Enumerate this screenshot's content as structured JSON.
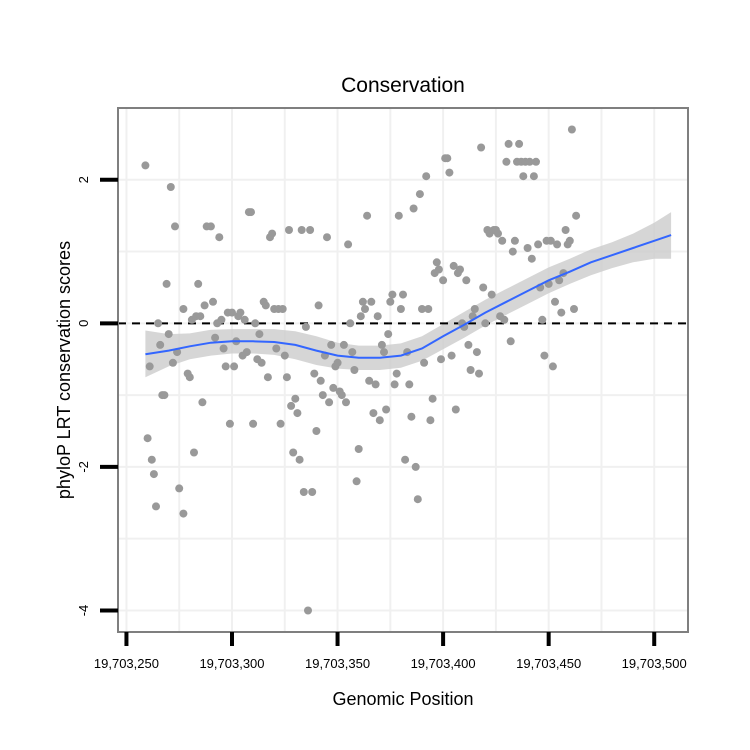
{
  "chart_data": {
    "type": "scatter",
    "title": "Conservation",
    "xlabel": "Genomic Position",
    "ylabel": "phyloP LRT conservation scores",
    "xlim": [
      19703246,
      19703516
    ],
    "ylim": [
      -4.3,
      3.0
    ],
    "x_ticks": [
      19703250,
      19703300,
      19703350,
      19703400,
      19703450,
      19703500
    ],
    "x_tick_labels": [
      "19,703,250",
      "19,703,300",
      "19,703,350",
      "19,703,400",
      "19,703,450",
      "19,703,500"
    ],
    "y_ticks": [
      -4,
      -2,
      0,
      2
    ],
    "y_tick_labels": [
      "-4",
      "-2",
      "0",
      "2"
    ],
    "reference_line": 0,
    "colors": {
      "points": "#999999",
      "smooth_line": "#3366ff",
      "confidence_band": "#cccccc",
      "reference_line": "#000000",
      "grid": "#f0f0f0",
      "panel_border": "#7f7f7f"
    },
    "points": [
      [
        19703259,
        2.2
      ],
      [
        19703260,
        -1.6
      ],
      [
        19703261,
        -0.6
      ],
      [
        19703262,
        -1.9
      ],
      [
        19703263,
        -2.1
      ],
      [
        19703264,
        -2.55
      ],
      [
        19703265,
        0.0
      ],
      [
        19703266,
        -0.3
      ],
      [
        19703267,
        -1.0
      ],
      [
        19703268,
        -1.0
      ],
      [
        19703269,
        0.55
      ],
      [
        19703270,
        -0.15
      ],
      [
        19703271,
        1.9
      ],
      [
        19703272,
        -0.55
      ],
      [
        19703273,
        1.35
      ],
      [
        19703274,
        -0.4
      ],
      [
        19703275,
        -2.3
      ],
      [
        19703277,
        -2.65
      ],
      [
        19703277,
        0.2
      ],
      [
        19703279,
        -0.7
      ],
      [
        19703280,
        -0.75
      ],
      [
        19703281,
        0.05
      ],
      [
        19703282,
        -1.8
      ],
      [
        19703283,
        0.1
      ],
      [
        19703284,
        0.55
      ],
      [
        19703285,
        0.1
      ],
      [
        19703286,
        -1.1
      ],
      [
        19703287,
        0.25
      ],
      [
        19703288,
        1.35
      ],
      [
        19703290,
        1.35
      ],
      [
        19703291,
        0.3
      ],
      [
        19703292,
        -0.2
      ],
      [
        19703293,
        0.0
      ],
      [
        19703294,
        1.2
      ],
      [
        19703295,
        0.05
      ],
      [
        19703296,
        -0.35
      ],
      [
        19703297,
        -0.6
      ],
      [
        19703298,
        0.15
      ],
      [
        19703299,
        -1.4
      ],
      [
        19703300,
        0.15
      ],
      [
        19703301,
        -0.6
      ],
      [
        19703302,
        -0.25
      ],
      [
        19703303,
        0.1
      ],
      [
        19703304,
        0.15
      ],
      [
        19703305,
        -0.45
      ],
      [
        19703306,
        0.05
      ],
      [
        19703307,
        -0.4
      ],
      [
        19703308,
        1.55
      ],
      [
        19703309,
        1.55
      ],
      [
        19703310,
        -1.4
      ],
      [
        19703311,
        0.0
      ],
      [
        19703312,
        -0.5
      ],
      [
        19703313,
        -0.15
      ],
      [
        19703314,
        -0.55
      ],
      [
        19703315,
        0.3
      ],
      [
        19703316,
        0.25
      ],
      [
        19703317,
        -0.75
      ],
      [
        19703318,
        1.2
      ],
      [
        19703319,
        1.25
      ],
      [
        19703320,
        0.2
      ],
      [
        19703321,
        -0.35
      ],
      [
        19703322,
        0.2
      ],
      [
        19703323,
        -1.4
      ],
      [
        19703324,
        0.2
      ],
      [
        19703325,
        -0.45
      ],
      [
        19703326,
        -0.75
      ],
      [
        19703327,
        1.3
      ],
      [
        19703328,
        -1.15
      ],
      [
        19703329,
        -1.8
      ],
      [
        19703330,
        -1.05
      ],
      [
        19703331,
        -1.25
      ],
      [
        19703332,
        -1.9
      ],
      [
        19703333,
        1.3
      ],
      [
        19703334,
        -2.35
      ],
      [
        19703335,
        -0.05
      ],
      [
        19703336,
        -4.0
      ],
      [
        19703337,
        1.3
      ],
      [
        19703338,
        -2.35
      ],
      [
        19703339,
        -0.7
      ],
      [
        19703340,
        -1.5
      ],
      [
        19703341,
        0.25
      ],
      [
        19703342,
        -0.8
      ],
      [
        19703343,
        -1.0
      ],
      [
        19703344,
        -0.45
      ],
      [
        19703345,
        1.2
      ],
      [
        19703346,
        -1.1
      ],
      [
        19703347,
        -0.3
      ],
      [
        19703348,
        -0.9
      ],
      [
        19703349,
        -0.6
      ],
      [
        19703350,
        -0.55
      ],
      [
        19703351,
        -0.95
      ],
      [
        19703352,
        -1.0
      ],
      [
        19703353,
        -0.3
      ],
      [
        19703354,
        -1.1
      ],
      [
        19703355,
        1.1
      ],
      [
        19703356,
        0.0
      ],
      [
        19703357,
        -0.4
      ],
      [
        19703358,
        -0.65
      ],
      [
        19703359,
        -2.2
      ],
      [
        19703360,
        -1.75
      ],
      [
        19703361,
        0.1
      ],
      [
        19703362,
        0.3
      ],
      [
        19703363,
        0.2
      ],
      [
        19703364,
        1.5
      ],
      [
        19703365,
        -0.8
      ],
      [
        19703366,
        0.3
      ],
      [
        19703367,
        -1.25
      ],
      [
        19703368,
        -0.85
      ],
      [
        19703369,
        0.1
      ],
      [
        19703370,
        -1.35
      ],
      [
        19703371,
        -0.3
      ],
      [
        19703372,
        -0.4
      ],
      [
        19703373,
        -1.2
      ],
      [
        19703374,
        -0.15
      ],
      [
        19703375,
        0.3
      ],
      [
        19703376,
        0.4
      ],
      [
        19703377,
        -0.85
      ],
      [
        19703378,
        -0.7
      ],
      [
        19703379,
        1.5
      ],
      [
        19703380,
        0.2
      ],
      [
        19703381,
        0.4
      ],
      [
        19703382,
        -1.9
      ],
      [
        19703383,
        -0.4
      ],
      [
        19703384,
        -0.85
      ],
      [
        19703385,
        -1.3
      ],
      [
        19703386,
        1.6
      ],
      [
        19703387,
        -2.0
      ],
      [
        19703388,
        -2.45
      ],
      [
        19703389,
        1.8
      ],
      [
        19703390,
        0.2
      ],
      [
        19703391,
        -0.55
      ],
      [
        19703392,
        2.05
      ],
      [
        19703393,
        0.2
      ],
      [
        19703394,
        -1.35
      ],
      [
        19703395,
        -1.05
      ],
      [
        19703396,
        0.7
      ],
      [
        19703397,
        0.85
      ],
      [
        19703398,
        0.75
      ],
      [
        19703399,
        -0.5
      ],
      [
        19703400,
        0.6
      ],
      [
        19703401,
        2.3
      ],
      [
        19703402,
        2.3
      ],
      [
        19703403,
        2.1
      ],
      [
        19703404,
        -0.45
      ],
      [
        19703405,
        0.8
      ],
      [
        19703406,
        -1.2
      ],
      [
        19703407,
        0.7
      ],
      [
        19703408,
        0.75
      ],
      [
        19703409,
        0.0
      ],
      [
        19703410,
        -0.05
      ],
      [
        19703411,
        0.6
      ],
      [
        19703412,
        -0.3
      ],
      [
        19703413,
        -0.65
      ],
      [
        19703414,
        0.1
      ],
      [
        19703415,
        0.2
      ],
      [
        19703416,
        -0.4
      ],
      [
        19703417,
        -0.7
      ],
      [
        19703418,
        2.45
      ],
      [
        19703419,
        0.5
      ],
      [
        19703420,
        0.0
      ],
      [
        19703421,
        1.3
      ],
      [
        19703422,
        1.25
      ],
      [
        19703423,
        0.4
      ],
      [
        19703424,
        1.3
      ],
      [
        19703425,
        1.3
      ],
      [
        19703426,
        1.25
      ],
      [
        19703427,
        0.1
      ],
      [
        19703428,
        1.15
      ],
      [
        19703429,
        0.05
      ],
      [
        19703430,
        2.25
      ],
      [
        19703431,
        2.5
      ],
      [
        19703432,
        -0.25
      ],
      [
        19703433,
        1.0
      ],
      [
        19703434,
        1.15
      ],
      [
        19703435,
        2.25
      ],
      [
        19703436,
        2.5
      ],
      [
        19703437,
        2.25
      ],
      [
        19703438,
        2.05
      ],
      [
        19703439,
        2.25
      ],
      [
        19703440,
        1.05
      ],
      [
        19703441,
        2.25
      ],
      [
        19703442,
        0.9
      ],
      [
        19703443,
        2.05
      ],
      [
        19703444,
        2.25
      ],
      [
        19703445,
        1.1
      ],
      [
        19703446,
        0.5
      ],
      [
        19703447,
        0.05
      ],
      [
        19703448,
        -0.45
      ],
      [
        19703449,
        1.15
      ],
      [
        19703450,
        0.55
      ],
      [
        19703451,
        1.15
      ],
      [
        19703452,
        -0.6
      ],
      [
        19703453,
        0.3
      ],
      [
        19703454,
        1.1
      ],
      [
        19703455,
        0.6
      ],
      [
        19703456,
        0.15
      ],
      [
        19703457,
        0.7
      ],
      [
        19703458,
        1.3
      ],
      [
        19703459,
        1.1
      ],
      [
        19703460,
        1.15
      ],
      [
        19703461,
        2.7
      ],
      [
        19703462,
        0.2
      ],
      [
        19703463,
        1.5
      ]
    ],
    "smooth_fit": {
      "x": [
        19703259,
        19703270,
        19703280,
        19703290,
        19703300,
        19703310,
        19703320,
        19703330,
        19703340,
        19703350,
        19703360,
        19703370,
        19703380,
        19703390,
        19703400,
        19703410,
        19703420,
        19703430,
        19703440,
        19703450,
        19703460,
        19703470,
        19703480,
        19703490,
        19703500,
        19703508
      ],
      "y": [
        -0.43,
        -0.38,
        -0.32,
        -0.27,
        -0.25,
        -0.25,
        -0.26,
        -0.3,
        -0.38,
        -0.45,
        -0.48,
        -0.48,
        -0.45,
        -0.35,
        -0.18,
        -0.02,
        0.15,
        0.3,
        0.45,
        0.6,
        0.72,
        0.85,
        0.95,
        1.05,
        1.15,
        1.23
      ],
      "lower": [
        -0.75,
        -0.6,
        -0.5,
        -0.45,
        -0.42,
        -0.42,
        -0.44,
        -0.5,
        -0.58,
        -0.63,
        -0.65,
        -0.65,
        -0.62,
        -0.52,
        -0.36,
        -0.2,
        -0.03,
        0.12,
        0.27,
        0.42,
        0.55,
        0.67,
        0.77,
        0.85,
        0.9,
        0.9
      ],
      "upper": [
        -0.1,
        -0.15,
        -0.14,
        -0.09,
        -0.08,
        -0.08,
        -0.08,
        -0.11,
        -0.18,
        -0.27,
        -0.31,
        -0.31,
        -0.28,
        -0.18,
        -0.01,
        0.16,
        0.33,
        0.48,
        0.63,
        0.78,
        0.9,
        1.03,
        1.13,
        1.25,
        1.4,
        1.55
      ]
    }
  }
}
